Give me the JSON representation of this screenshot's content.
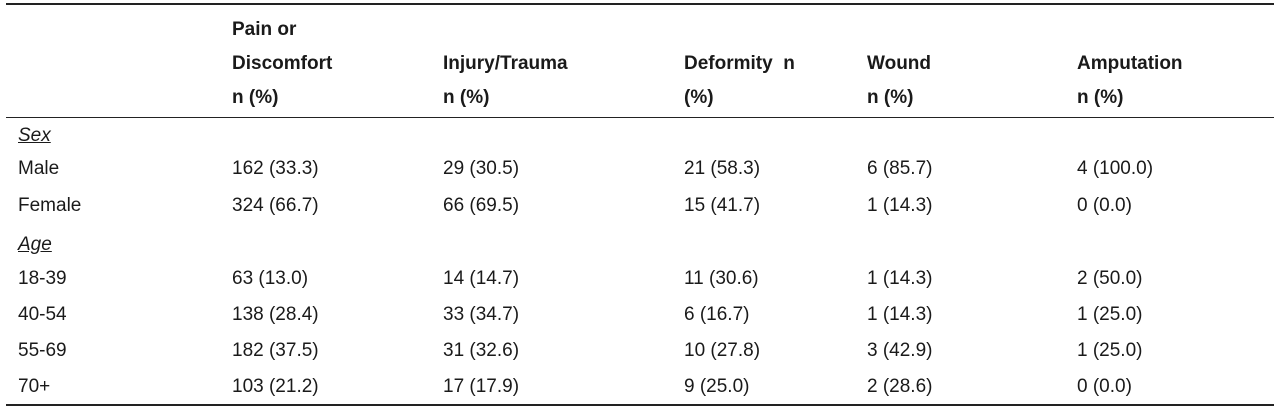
{
  "table": {
    "headers": [
      {
        "lines": [
          "",
          "",
          ""
        ]
      },
      {
        "lines": [
          "Pain or",
          "Discomfort",
          "n (%)"
        ]
      },
      {
        "lines": [
          "",
          "Injury/Trauma",
          "n (%)"
        ]
      },
      {
        "lines": [
          "",
          "Deformity  n",
          "(%)"
        ]
      },
      {
        "lines": [
          "",
          "Wound",
          "n (%)"
        ]
      },
      {
        "lines": [
          "",
          "Amputation",
          "n (%)"
        ]
      }
    ],
    "sections": [
      {
        "label": "Sex",
        "rows": [
          {
            "cells": [
              "Male",
              "162 (33.3)",
              "29 (30.5)",
              "21 (58.3)",
              "6 (85.7)",
              "4 (100.0)"
            ]
          },
          {
            "cells": [
              "Female",
              "324 (66.7)",
              "66 (69.5)",
              "15 (41.7)",
              "1 (14.3)",
              "0 (0.0)"
            ]
          }
        ]
      },
      {
        "label": "Age",
        "rows": [
          {
            "cells": [
              "18-39",
              "63 (13.0)",
              "14 (14.7)",
              "11 (30.6)",
              "1 (14.3)",
              "2 (50.0)"
            ]
          },
          {
            "cells": [
              "40-54",
              "138 (28.4)",
              "33 (34.7)",
              "6 (16.7)",
              "1 (14.3)",
              "1 (25.0)"
            ]
          },
          {
            "cells": [
              "55-69",
              "182 (37.5)",
              "31 (32.6)",
              "10 (27.8)",
              "3 (42.9)",
              "1 (25.0)"
            ]
          },
          {
            "cells": [
              "70+",
              "103 (21.2)",
              "17 (17.9)",
              "9 (25.0)",
              "2 (28.6)",
              "0 (0.0)"
            ]
          }
        ]
      }
    ]
  }
}
